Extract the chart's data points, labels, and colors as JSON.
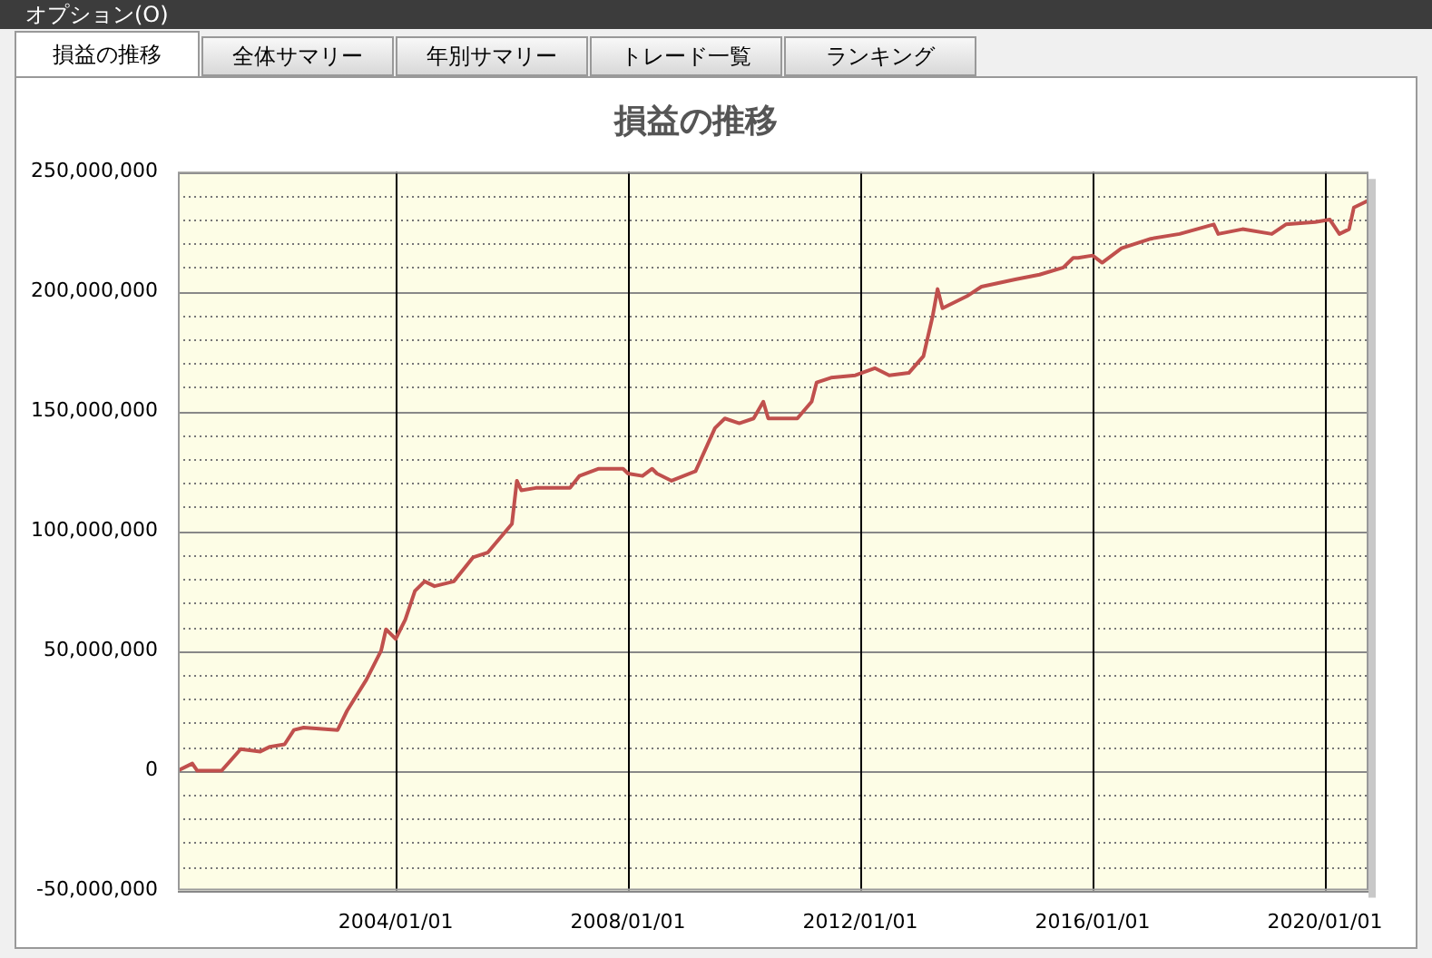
{
  "chart_data": {
    "type": "line",
    "title": "損益の推移",
    "annotations": [
      "オプション(O)",
      "損益の推移",
      "全体サマリー",
      "年別サマリー",
      "トレード一覧",
      "ランキング"
    ],
    "x": [
      "2000-04",
      "2000-07",
      "2000-08",
      "2001-01",
      "2001-05",
      "2001-09",
      "2001-11",
      "2002-02",
      "2002-04",
      "2002-06",
      "2003-01",
      "2003-03",
      "2003-07",
      "2003-10",
      "2003-11",
      "2004-01",
      "2004-03",
      "2004-05",
      "2004-07",
      "2004-09",
      "2005-01",
      "2005-05",
      "2005-08",
      "2006-01",
      "2006-02",
      "2006-03",
      "2006-06",
      "2007-01",
      "2007-03",
      "2007-07",
      "2007-12",
      "2008-01",
      "2008-04",
      "2008-06",
      "2008-07",
      "2008-10",
      "2009-03",
      "2009-07",
      "2009-09",
      "2009-12",
      "2010-03",
      "2010-05",
      "2010-06",
      "2010-12",
      "2011-03",
      "2011-04",
      "2011-07",
      "2011-12",
      "2012-04",
      "2012-07",
      "2012-11",
      "2013-02",
      "2013-04",
      "2013-05",
      "2013-06",
      "2013-11",
      "2014-02",
      "2014-09",
      "2015-02",
      "2015-07",
      "2015-09",
      "2015-10",
      "2016-01",
      "2016-03",
      "2016-07",
      "2017-01",
      "2017-07",
      "2018-02",
      "2018-03",
      "2018-08",
      "2019-02",
      "2019-05",
      "2019-11",
      "2020-02",
      "2020-04",
      "2020-06",
      "2020-07",
      "2020-09",
      "2020-10"
    ],
    "series": [
      {
        "color": "#c0504d",
        "values": [
          0,
          3000000,
          0,
          0,
          9000000,
          8000000,
          10000000,
          11000000,
          17000000,
          18000000,
          17000000,
          25000000,
          38000000,
          50000000,
          59000000,
          55000000,
          63000000,
          75000000,
          79000000,
          77000000,
          79000000,
          89000000,
          91000000,
          103000000,
          121000000,
          117000000,
          118000000,
          118000000,
          123000000,
          126000000,
          126000000,
          124000000,
          123000000,
          126000000,
          124000000,
          121000000,
          125000000,
          143000000,
          147000000,
          145000000,
          147000000,
          154000000,
          147000000,
          147000000,
          154000000,
          162000000,
          164000000,
          165000000,
          168000000,
          165000000,
          166000000,
          173000000,
          190000000,
          201000000,
          193000000,
          198000000,
          202000000,
          205000000,
          207000000,
          210000000,
          214000000,
          214000000,
          215000000,
          212000000,
          218000000,
          222000000,
          224000000,
          228000000,
          224000000,
          226000000,
          224000000,
          228000000,
          229000000,
          230000000,
          224000000,
          226000000,
          235000000,
          237000000,
          238000000
        ]
      }
    ],
    "xlim": [
      "2000-04",
      "2020-10"
    ],
    "xticks": [
      {
        "value": "2004-01-01",
        "label": "2004/01/01"
      },
      {
        "value": "2008-01-01",
        "label": "2008/01/01"
      },
      {
        "value": "2012-01-01",
        "label": "2012/01/01"
      },
      {
        "value": "2016-01-01",
        "label": "2016/01/01"
      },
      {
        "value": "2020-01-01",
        "label": "2020/01/01"
      }
    ],
    "ylim": [
      -50000000,
      250000000
    ],
    "yticks": [
      {
        "value": -50000000,
        "label": "-50,000,000"
      },
      {
        "value": -40000000,
        "label": null
      },
      {
        "value": -30000000,
        "label": null
      },
      {
        "value": -20000000,
        "label": null
      },
      {
        "value": -10000000,
        "label": null
      },
      {
        "value": 0,
        "label": "0"
      },
      {
        "value": 10000000,
        "label": null
      },
      {
        "value": 20000000,
        "label": null
      },
      {
        "value": 30000000,
        "label": null
      },
      {
        "value": 40000000,
        "label": null
      },
      {
        "value": 50000000,
        "label": "50,000,000"
      },
      {
        "value": 60000000,
        "label": null
      },
      {
        "value": 70000000,
        "label": null
      },
      {
        "value": 80000000,
        "label": null
      },
      {
        "value": 90000000,
        "label": null
      },
      {
        "value": 100000000,
        "label": "100,000,000"
      },
      {
        "value": 110000000,
        "label": null
      },
      {
        "value": 120000000,
        "label": null
      },
      {
        "value": 130000000,
        "label": null
      },
      {
        "value": 140000000,
        "label": null
      },
      {
        "value": 150000000,
        "label": "150,000,000"
      },
      {
        "value": 160000000,
        "label": null
      },
      {
        "value": 170000000,
        "label": null
      },
      {
        "value": 180000000,
        "label": null
      },
      {
        "value": 190000000,
        "label": null
      },
      {
        "value": 200000000,
        "label": "200,000,000"
      },
      {
        "value": 210000000,
        "label": null
      },
      {
        "value": 220000000,
        "label": null
      },
      {
        "value": 230000000,
        "label": null
      },
      {
        "value": 240000000,
        "label": null
      },
      {
        "value": 250000000,
        "label": "250,000,000"
      }
    ],
    "grid": true,
    "legend": false
  }
}
